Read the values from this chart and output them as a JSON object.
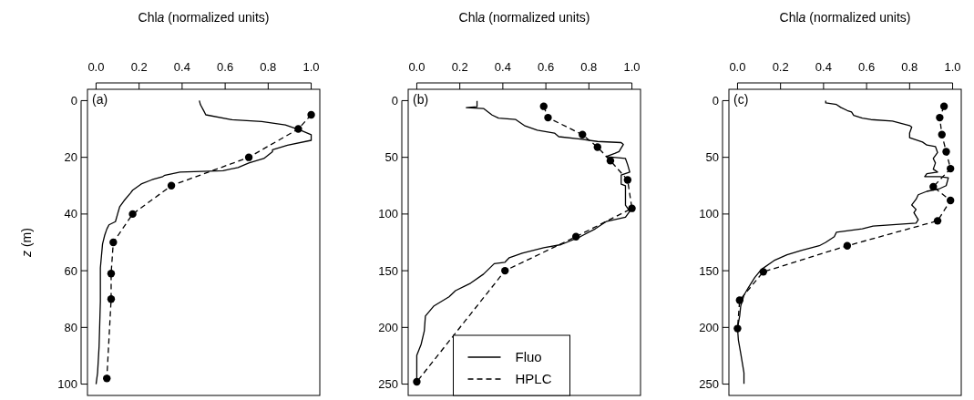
{
  "chart_data": [
    {
      "type": "line",
      "xlabel": "Chl$_{}$a (normalized units)",
      "ylabel": "z (m)",
      "annotations": [
        "(a)"
      ],
      "xlim": [
        -0.04,
        1.04
      ],
      "xticks": [
        {
          "value": 0,
          "label": "0.0"
        },
        {
          "value": 0.2,
          "label": "0.2"
        },
        {
          "value": 0.4,
          "label": "0.4"
        },
        {
          "value": 0.6,
          "label": "0.6"
        },
        {
          "value": 0.8,
          "label": "0.8"
        },
        {
          "value": 1,
          "label": "1.0"
        }
      ],
      "ylim": [
        104,
        -4
      ],
      "yticks": [
        0,
        20,
        40,
        60,
        80,
        100
      ],
      "grid": false,
      "legend": false,
      "series": [
        {
          "color": "#000000",
          "line_style": "solid",
          "marker": "none",
          "x": [
            0.48,
            0.485,
            0.5,
            0.51,
            0.63,
            0.77,
            0.88,
            0.95,
            1.0,
            1.0,
            0.89,
            0.82,
            0.82,
            0.78,
            0.71,
            0.66,
            0.59,
            0.39,
            0.32,
            0.31,
            0.26,
            0.21,
            0.17,
            0.16,
            0.13,
            0.11,
            0.1,
            0.09,
            0.06,
            0.05,
            0.04,
            0.03,
            0.02,
            0.02,
            0.014,
            0.007,
            0.0
          ],
          "values": [
            0,
            1.4,
            3.5,
            5,
            6.7,
            7.4,
            8.6,
            10.4,
            12,
            14,
            15.7,
            17.3,
            18,
            20.4,
            22,
            23.6,
            24.7,
            25.2,
            26.3,
            26.8,
            27.9,
            29.4,
            31.6,
            32.6,
            35.3,
            37.4,
            40,
            42.7,
            43.8,
            45.3,
            47.5,
            50.6,
            59,
            70.8,
            86.7,
            96,
            100
          ]
        },
        {
          "color": "#000000",
          "line_style": "dashed",
          "marker": "circle",
          "x": [
            1.0,
            0.94,
            0.71,
            0.35,
            0.17,
            0.08,
            0.07,
            0.07,
            0.05
          ],
          "values": [
            5,
            10,
            20,
            30,
            40,
            50,
            61,
            70,
            98
          ]
        }
      ]
    },
    {
      "type": "line",
      "xlabel": "Chl$_{}$a (normalized units)",
      "annotations": [
        "(b)"
      ],
      "xlim": [
        -0.04,
        1.04
      ],
      "xticks": [
        {
          "value": 0,
          "label": "0.0"
        },
        {
          "value": 0.2,
          "label": "0.2"
        },
        {
          "value": 0.4,
          "label": "0.4"
        },
        {
          "value": 0.6,
          "label": "0.6"
        },
        {
          "value": 0.8,
          "label": "0.8"
        },
        {
          "value": 1,
          "label": "1.0"
        }
      ],
      "ylim": [
        260,
        -10
      ],
      "yticks": [
        0,
        50,
        100,
        150,
        200,
        250
      ],
      "grid": false,
      "legend": "bottom",
      "series": [
        {
          "name": "Fluo",
          "color": "#000000",
          "line_style": "solid",
          "marker": "none",
          "x": [
            0.28,
            0.28,
            0.23,
            0.31,
            0.35,
            0.38,
            0.46,
            0.5,
            0.56,
            0.64,
            0.66,
            0.76,
            0.84,
            0.95,
            0.96,
            0.94,
            0.92,
            0.88,
            0.97,
            0.98,
            0.99,
            0.95,
            0.95,
            0.97,
            0.97,
            0.99,
            0.97,
            0.88,
            0.83,
            0.76,
            0.67,
            0.59,
            0.49,
            0.43,
            0.41,
            0.36,
            0.31,
            0.25,
            0.18,
            0.15,
            0.08,
            0.04,
            0.035,
            0.02,
            0.0,
            0.0
          ],
          "values": [
            0.3,
            5.3,
            6.1,
            6.9,
            12.7,
            15.4,
            16.7,
            22,
            26,
            28.6,
            31.8,
            33.9,
            36,
            37,
            38.7,
            45,
            46.6,
            49.3,
            51,
            56.4,
            63,
            65.7,
            73.6,
            75,
            92.2,
            97.5,
            102.8,
            106.7,
            113,
            120,
            127,
            129.8,
            134.5,
            138.5,
            142.5,
            143.8,
            153,
            161,
            167.6,
            173,
            181,
            190,
            203,
            215,
            224.6,
            248.4
          ]
        },
        {
          "name": "HPLC",
          "color": "#000000",
          "line_style": "dashed",
          "marker": "circle",
          "x": [
            0.59,
            0.61,
            0.77,
            0.84,
            0.9,
            0.98,
            1.0,
            0.74,
            0.41,
            0.0
          ],
          "values": [
            5,
            15,
            30,
            41,
            53,
            70,
            95,
            120,
            150,
            248
          ]
        }
      ]
    },
    {
      "type": "line",
      "xlabel": "Chl$_{}$a (normalized units)",
      "annotations": [
        "(c)"
      ],
      "xlim": [
        -0.04,
        1.04
      ],
      "xticks": [
        {
          "value": 0,
          "label": "0.0"
        },
        {
          "value": 0.2,
          "label": "0.2"
        },
        {
          "value": 0.4,
          "label": "0.4"
        },
        {
          "value": 0.6,
          "label": "0.6"
        },
        {
          "value": 0.8,
          "label": "0.8"
        },
        {
          "value": 1,
          "label": "1.0"
        }
      ],
      "ylim": [
        260,
        -10
      ],
      "yticks": [
        0,
        50,
        100,
        150,
        200,
        250
      ],
      "grid": false,
      "legend": false,
      "series": [
        {
          "color": "#000000",
          "line_style": "solid",
          "marker": "none",
          "x": [
            0.41,
            0.41,
            0.46,
            0.48,
            0.51,
            0.53,
            0.54,
            0.58,
            0.62,
            0.72,
            0.8,
            0.81,
            0.8,
            0.8,
            0.86,
            0.88,
            0.92,
            0.93,
            0.91,
            0.92,
            0.91,
            0.93,
            0.88,
            0.87,
            0.94,
            0.98,
            0.97,
            0.94,
            0.88,
            0.84,
            0.83,
            0.81,
            0.83,
            0.82,
            0.84,
            0.83,
            0.63,
            0.58,
            0.46,
            0.45,
            0.41,
            0.38,
            0.3,
            0.23,
            0.17,
            0.11,
            0.08,
            0.05,
            0.03,
            0.015,
            0.01,
            0.0,
            0.004,
            0.015,
            0.03,
            0.03
          ],
          "values": [
            0,
            2,
            3.4,
            6,
            8.7,
            10,
            13,
            15.4,
            16.7,
            18,
            22,
            23.3,
            28.6,
            32.6,
            36.5,
            39.2,
            40.5,
            45.8,
            51,
            55,
            60.4,
            63,
            64.4,
            67,
            67,
            68,
            75,
            77.6,
            80,
            83,
            87,
            92,
            96,
            98.8,
            105,
            108,
            110.7,
            113,
            116,
            120,
            125,
            128,
            132,
            136,
            141,
            149,
            156,
            165,
            171.6,
            181,
            190,
            200.7,
            211,
            223,
            240,
            249.7
          ]
        },
        {
          "color": "#000000",
          "line_style": "dashed",
          "marker": "circle",
          "x": [
            0.96,
            0.94,
            0.95,
            0.97,
            0.99,
            0.91,
            0.99,
            0.93,
            0.51,
            0.12,
            0.01,
            0.0
          ],
          "values": [
            5,
            15,
            30,
            45,
            60,
            76,
            88,
            106,
            128,
            151,
            176,
            201
          ]
        }
      ]
    }
  ]
}
